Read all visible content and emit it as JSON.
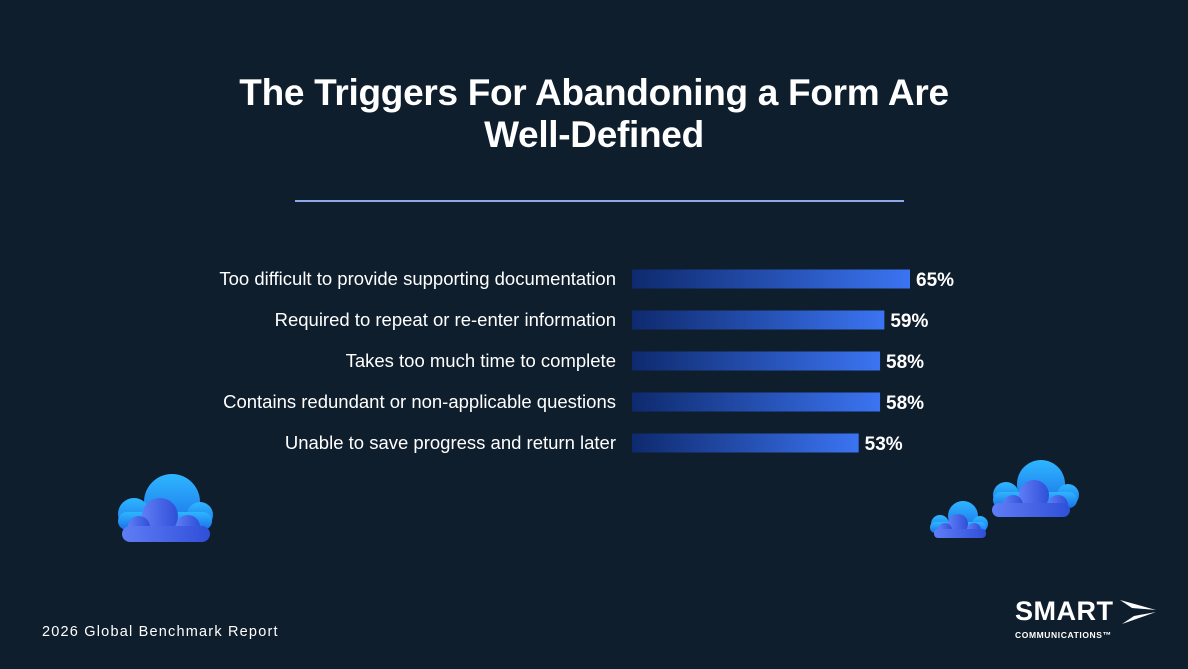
{
  "title_lines": [
    "The Triggers For Abandoning a Form Are",
    "Well-Defined"
  ],
  "footer": "2026 Global Benchmark Report",
  "logo": {
    "main": "SMART",
    "sub": "COMMUNICATIONS™"
  },
  "colors": {
    "background": "#0f1e2d",
    "bar_start": "#0e2a6e",
    "bar_end": "#3b74f2",
    "rule": "#8ea8e8"
  },
  "chart_data": {
    "type": "bar",
    "orientation": "horizontal",
    "categories": [
      "Too difficult to provide supporting documentation",
      "Required to repeat or re-enter information",
      "Takes too much time to complete",
      "Contains redundant or non-applicable questions",
      "Unable to save progress and return later"
    ],
    "values": [
      65,
      59,
      58,
      58,
      53
    ],
    "value_labels": [
      "65%",
      "59%",
      "58%",
      "58%",
      "53%"
    ],
    "unit": "%",
    "xlim": [
      0,
      65
    ],
    "grid": false
  }
}
